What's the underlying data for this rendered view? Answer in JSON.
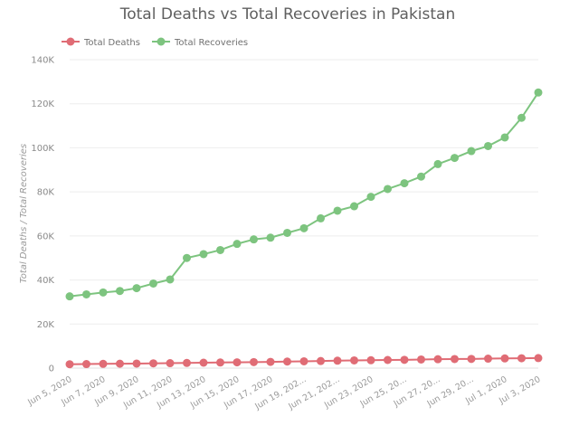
{
  "chart_data": {
    "type": "line",
    "title": "Total Deaths vs Total Recoveries in Pakistan",
    "ylabel": "Total Deaths / Total Recoveries",
    "xlabel": "",
    "ylim": [
      0,
      140000
    ],
    "y_ticks": [
      0,
      20000,
      40000,
      60000,
      80000,
      100000,
      120000,
      140000
    ],
    "y_tick_labels": [
      "0",
      "20K",
      "40K",
      "60K",
      "80K",
      "100K",
      "120K",
      "140K"
    ],
    "legend_position": "top-left",
    "grid": true,
    "x": [
      "Jun 5, 2020",
      "Jun 6, 2020",
      "Jun 7, 2020",
      "Jun 8, 2020",
      "Jun 9, 2020",
      "Jun 10, 2020",
      "Jun 11, 2020",
      "Jun 12, 2020",
      "Jun 13, 2020",
      "Jun 14, 2020",
      "Jun 15, 2020",
      "Jun 16, 2020",
      "Jun 17, 2020",
      "Jun 18, 2020",
      "Jun 19, 2020",
      "Jun 20, 2020",
      "Jun 21, 2020",
      "Jun 22, 2020",
      "Jun 23, 2020",
      "Jun 24, 2020",
      "Jun 25, 2020",
      "Jun 26, 2020",
      "Jun 27, 2020",
      "Jun 28, 2020",
      "Jun 29, 2020",
      "Jun 30, 2020",
      "Jul 1, 2020",
      "Jul 2, 2020",
      "Jul 3, 2020"
    ],
    "x_tick_labels": [
      "Jun 5, 2020",
      "",
      "Jun 7, 2020",
      "",
      "Jun 9, 2020",
      "",
      "Jun 11, 2020",
      "",
      "Jun 13, 2020",
      "",
      "Jun 15, 2020",
      "",
      "Jun 17, 2020",
      "",
      "Jun 19, 202...",
      "",
      "Jun 21, 202...",
      "",
      "Jun 23, 2020",
      "",
      "Jun 25, 20...",
      "",
      "Jun 27, 20...",
      "",
      "Jun 29, 20...",
      "",
      "Jul 1, 2020",
      "",
      "Jul 3, 2020"
    ],
    "series": [
      {
        "name": "Total Deaths",
        "color": "#e06c75",
        "values": [
          1770,
          1838,
          1935,
          2002,
          2067,
          2172,
          2255,
          2356,
          2463,
          2551,
          2632,
          2729,
          2839,
          2975,
          3093,
          3229,
          3382,
          3501,
          3590,
          3695,
          3755,
          3903,
          4035,
          4118,
          4167,
          4304,
          4395,
          4473,
          4551
        ]
      },
      {
        "name": "Total Recoveries",
        "color": "#7dc47f",
        "values": [
          32581,
          33465,
          34355,
          35018,
          36308,
          38391,
          40247,
          50000,
          51735,
          53600,
          56390,
          58437,
          59215,
          61383,
          63504,
          67987,
          71453,
          73471,
          77754,
          81307,
          83927,
          86955,
          92624,
          95407,
          98522,
          100802,
          104715,
          113623,
          125094
        ]
      }
    ]
  }
}
